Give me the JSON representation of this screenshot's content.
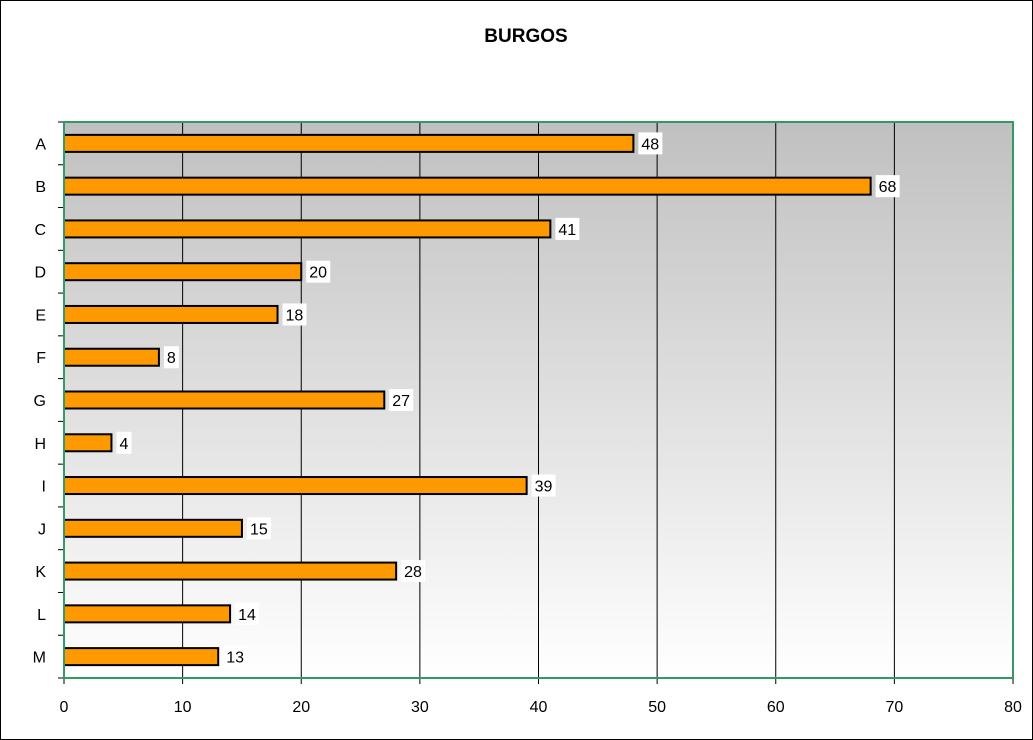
{
  "chart_data": {
    "type": "bar",
    "orientation": "horizontal",
    "title": "BURGOS",
    "categories": [
      "A",
      "B",
      "C",
      "D",
      "E",
      "F",
      "G",
      "H",
      "I",
      "J",
      "K",
      "L",
      "M"
    ],
    "values": [
      48,
      68,
      41,
      20,
      18,
      8,
      27,
      4,
      39,
      15,
      28,
      14,
      13
    ],
    "data_labels": [
      "48",
      "68",
      "41",
      "20",
      "18",
      "8",
      "27",
      "4",
      "39",
      "15",
      "28",
      "14",
      "13"
    ],
    "xlim": [
      0,
      80
    ],
    "x_ticks": [
      "0",
      "10",
      "20",
      "30",
      "40",
      "50",
      "60",
      "70",
      "80"
    ],
    "xlabel": "",
    "ylabel": "",
    "grid": "vertical",
    "legend": "none",
    "colors": {
      "bar_fill": "#FF9900",
      "bar_stroke": "#000000",
      "plot_border": "#339966",
      "plot_gradient_top": "#C0C0C0",
      "plot_gradient_bottom": "#FFFFFF",
      "gridline": "#000000"
    }
  }
}
